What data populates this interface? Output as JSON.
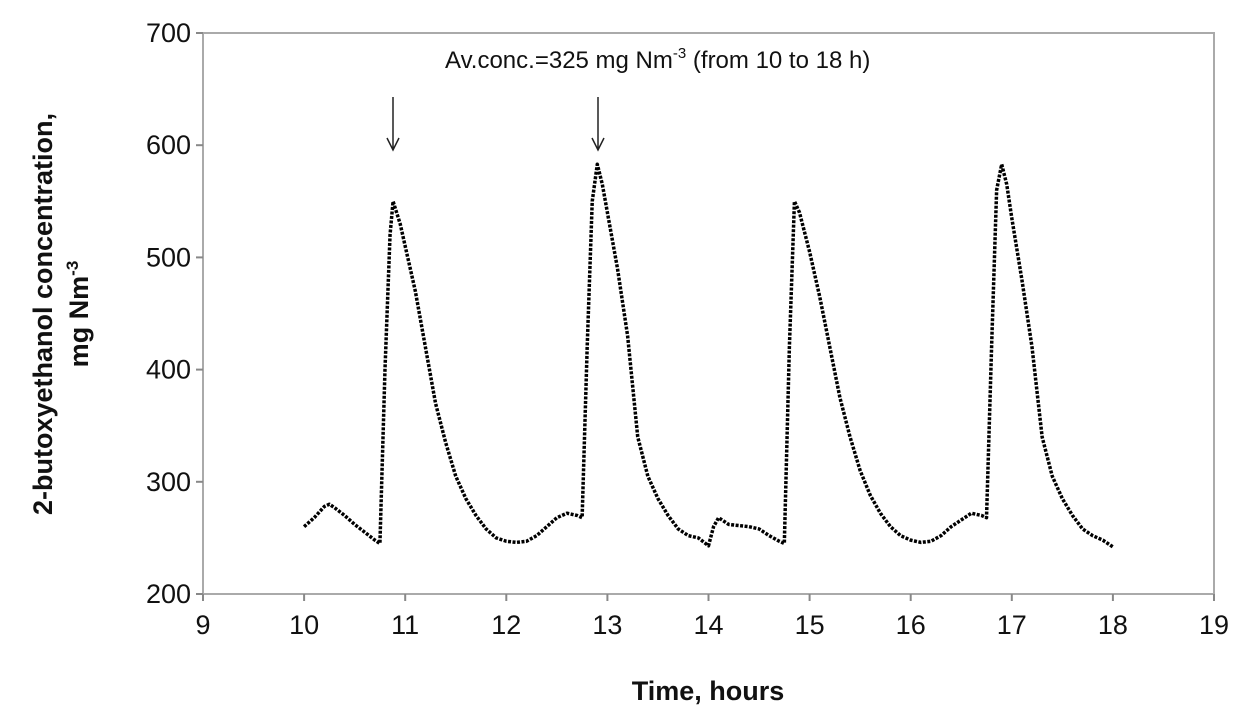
{
  "chart_data": {
    "type": "line",
    "x_label": "Time, hours",
    "y_label": [
      "2-butoxyethanol concentration,",
      "mg Nm",
      "-3"
    ],
    "annotation": [
      "Av.conc.=325 mg Nm",
      "-3",
      " (from 10 to 18 h)"
    ],
    "xlim": [
      9,
      19
    ],
    "xticks": [
      9,
      10,
      11,
      12,
      13,
      14,
      15,
      16,
      17,
      18,
      19
    ],
    "ylim": [
      200,
      700
    ],
    "yticks": [
      200,
      300,
      400,
      500,
      600,
      700
    ],
    "series": [
      {
        "color": "#000000",
        "x": [
          10.0,
          10.1,
          10.2,
          10.25,
          10.3,
          10.4,
          10.5,
          10.6,
          10.7,
          10.75,
          10.8,
          10.85,
          10.88,
          10.95,
          11.0,
          11.1,
          11.2,
          11.3,
          11.4,
          11.5,
          11.6,
          11.7,
          11.8,
          11.9,
          12.0,
          12.1,
          12.2,
          12.3,
          12.4,
          12.5,
          12.6,
          12.7,
          12.75,
          12.8,
          12.85,
          12.9,
          12.95,
          13.0,
          13.1,
          13.2,
          13.3,
          13.4,
          13.5,
          13.6,
          13.7,
          13.8,
          13.9,
          14.0,
          14.05,
          14.1,
          14.2,
          14.3,
          14.4,
          14.5,
          14.6,
          14.7,
          14.75,
          14.8,
          14.85,
          14.9,
          15.0,
          15.1,
          15.2,
          15.3,
          15.4,
          15.5,
          15.6,
          15.7,
          15.8,
          15.9,
          16.0,
          16.1,
          16.2,
          16.3,
          16.4,
          16.5,
          16.6,
          16.7,
          16.75,
          16.8,
          16.85,
          16.9,
          16.95,
          17.0,
          17.1,
          17.2,
          17.3,
          17.4,
          17.5,
          17.6,
          17.7,
          17.8,
          17.9,
          18.0
        ],
        "values": [
          260,
          268,
          278,
          280,
          277,
          270,
          262,
          255,
          248,
          245,
          400,
          520,
          550,
          530,
          510,
          470,
          420,
          370,
          335,
          305,
          285,
          270,
          258,
          250,
          247,
          246,
          247,
          252,
          260,
          268,
          272,
          270,
          268,
          420,
          550,
          583,
          565,
          540,
          490,
          430,
          340,
          305,
          285,
          270,
          258,
          252,
          250,
          243,
          260,
          268,
          262,
          261,
          260,
          258,
          252,
          247,
          245,
          420,
          550,
          540,
          505,
          465,
          420,
          375,
          340,
          310,
          288,
          272,
          260,
          252,
          248,
          246,
          247,
          252,
          260,
          266,
          272,
          270,
          268,
          420,
          560,
          583,
          565,
          535,
          480,
          420,
          340,
          305,
          285,
          270,
          258,
          252,
          248,
          242
        ]
      }
    ]
  }
}
